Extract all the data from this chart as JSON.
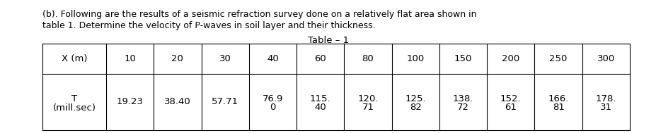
{
  "title_line1": "(b). Following are the results of a seismic refraction survey done on a relatively flat area shown in",
  "title_line2": "table 1. Determine the velocity of P-waves in soil layer and their thickness.",
  "table_title": "Table – 1",
  "row1_header": "X (m)",
  "row1_values": [
    "10",
    "20",
    "30",
    "40",
    "60",
    "80",
    "100",
    "150",
    "200",
    "250",
    "300"
  ],
  "row2_header_line1": "T",
  "row2_header_line2": "(mill.sec)",
  "row2_values_line1": [
    "19.23",
    "38.40",
    "57.71",
    "76.9",
    "115.",
    "120.",
    "125.",
    "138.",
    "152.",
    "166.",
    "178."
  ],
  "row2_values_line2": [
    "",
    "",
    "",
    "0",
    "40",
    "71",
    "82",
    "72",
    "61",
    "81",
    "31"
  ],
  "bg_color": "#ffffff",
  "text_color": "#000000",
  "font_size_title": 9.0,
  "font_size_table_title": 9.5,
  "font_size_table": 9.5
}
